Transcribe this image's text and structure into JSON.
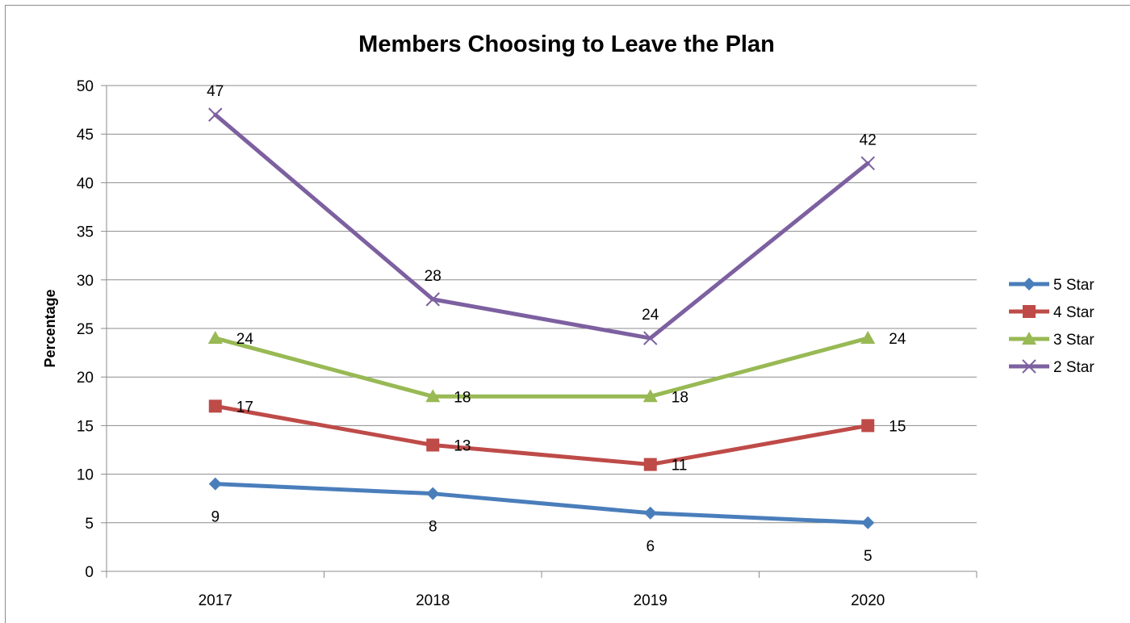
{
  "chart_data": {
    "type": "line",
    "title": "Members Choosing to Leave the Plan",
    "ylabel": "Percentage",
    "xlabel": "",
    "categories": [
      "2017",
      "2018",
      "2019",
      "2020"
    ],
    "ylim": [
      0,
      50
    ],
    "yticks": [
      0,
      5,
      10,
      15,
      20,
      25,
      30,
      35,
      40,
      45,
      50
    ],
    "grid": true,
    "legend_position": "right",
    "series": [
      {
        "name": "5 Star",
        "values": [
          9,
          8,
          6,
          5
        ],
        "color": "#4a7ebb",
        "marker": "diamond",
        "label_pos": "below"
      },
      {
        "name": "4 Star",
        "values": [
          17,
          13,
          11,
          15
        ],
        "color": "#be4b48",
        "marker": "square",
        "label_pos": "right"
      },
      {
        "name": "3 Star",
        "values": [
          24,
          18,
          18,
          24
        ],
        "color": "#98b954",
        "marker": "triangle",
        "label_pos": "right"
      },
      {
        "name": "2 Star",
        "values": [
          47,
          28,
          24,
          42
        ],
        "color": "#7d60a0",
        "marker": "x",
        "label_pos": "above"
      }
    ]
  }
}
